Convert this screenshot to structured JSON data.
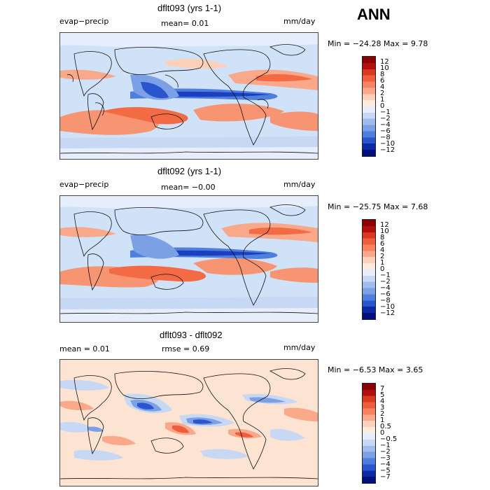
{
  "header": {
    "season": "ANN"
  },
  "panels": [
    {
      "title": "dflt093 (yrs 1-1)",
      "variable": "evap−precip",
      "stat1": "mean=   0.01",
      "units": "mm/day",
      "minmax": "Min = −24.28 Max =   9.78",
      "colorbar": {
        "labels": [
          "12",
          "10",
          "8",
          "6",
          "4",
          "2",
          "1",
          "0",
          "−1",
          "−2",
          "−4",
          "−6",
          "−8",
          "−10",
          "−12"
        ],
        "colors": [
          "#8b0000",
          "#b40f0f",
          "#d93a1f",
          "#ef5e3c",
          "#f7825f",
          "#f9a98a",
          "#fcd0b9",
          "#fdebde",
          "#e7eefb",
          "#c6d8f3",
          "#9fbdec",
          "#7ba0e6",
          "#4f7fde",
          "#2a55cc",
          "#0d2aa6",
          "#00107a"
        ]
      }
    },
    {
      "title": "dflt092 (yrs 1-1)",
      "variable": "evap−precip",
      "stat1": "mean=   −0.00",
      "units": "mm/day",
      "minmax": "Min = −25.75 Max =   7.68",
      "colorbar": {
        "labels": [
          "12",
          "10",
          "8",
          "6",
          "4",
          "2",
          "1",
          "0",
          "−1",
          "−2",
          "−4",
          "−6",
          "−8",
          "−10",
          "−12"
        ],
        "colors": [
          "#8b0000",
          "#b40f0f",
          "#d93a1f",
          "#ef5e3c",
          "#f7825f",
          "#f9a98a",
          "#fcd0b9",
          "#fdebde",
          "#e7eefb",
          "#c6d8f3",
          "#9fbdec",
          "#7ba0e6",
          "#4f7fde",
          "#2a55cc",
          "#0d2aa6",
          "#00107a"
        ]
      }
    },
    {
      "title": "dflt093 - dflt092",
      "stat1": "mean =     0.01",
      "stat2": "rmse =    0.69",
      "units": "mm/day",
      "minmax": "Min =  −6.53 Max =   3.65",
      "colorbar": {
        "labels": [
          "7",
          "5",
          "4",
          "3",
          "2",
          "1",
          "0.5",
          "0",
          "−0.5",
          "−1",
          "−2",
          "−3",
          "−4",
          "−5",
          "−7"
        ],
        "colors": [
          "#8b0000",
          "#b40f0f",
          "#d93a1f",
          "#ef5e3c",
          "#f7825f",
          "#f9a98a",
          "#fcd0b9",
          "#fdebde",
          "#e7eefb",
          "#c6d8f3",
          "#9fbdec",
          "#7ba0e6",
          "#4f7fde",
          "#2a55cc",
          "#0d2aa6",
          "#00107a"
        ]
      }
    }
  ]
}
